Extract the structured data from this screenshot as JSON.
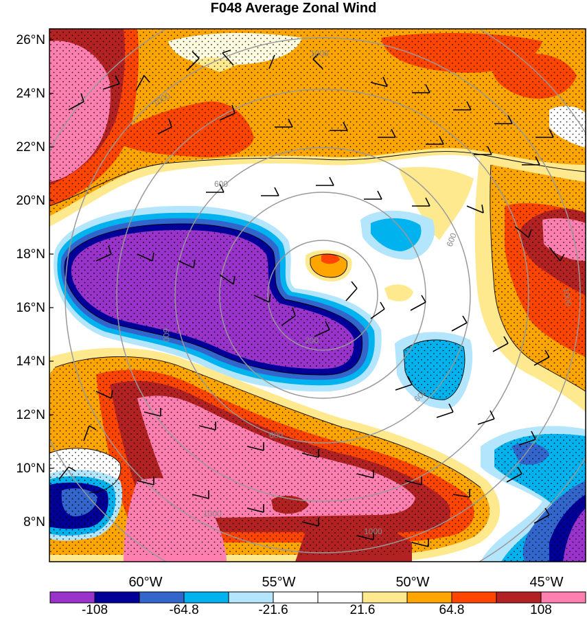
{
  "title": "F048 Average Zonal Wind",
  "lat_labels": [
    "26°N",
    "24°N",
    "22°N",
    "20°N",
    "18°N",
    "16°N",
    "14°N",
    "12°N",
    "10°N",
    "8°N"
  ],
  "lon_labels": [
    "60°W",
    "55°W",
    "50°W",
    "45°W"
  ],
  "colorbar": {
    "colors": [
      "#9933cc",
      "#000099",
      "#3366cc",
      "#00b2ee",
      "#b3e5fc",
      "#ffffff",
      "#ffffff",
      "#ffe98f",
      "#ffa500",
      "#ff4500",
      "#b22222",
      "#ff7fb0"
    ],
    "labels": [
      "-108",
      "-64.8",
      "-21.6",
      "21.6",
      "64.8",
      "108"
    ]
  },
  "range_ring_labels": [
    "200",
    "600",
    "1000",
    "600",
    "600",
    "1000",
    "600",
    "600",
    "1000",
    "1000",
    "1000"
  ]
}
